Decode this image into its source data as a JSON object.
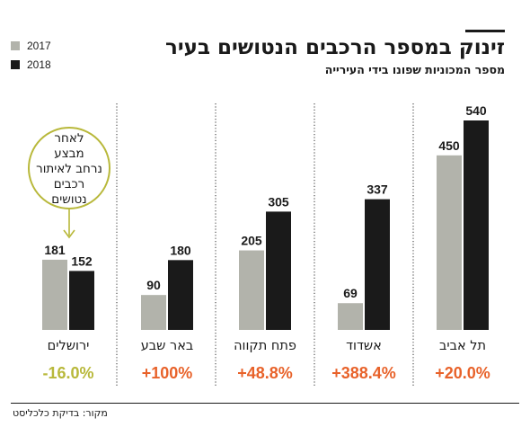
{
  "title": "זינוק במספר הרכבים הנטושים בעיר",
  "subtitle": "מספר המכוניות שפונו בידי העירייה",
  "source": "מקור: בדיקת כלכליסט",
  "legend": [
    {
      "label": "2017",
      "color": "#b2b3ab"
    },
    {
      "label": "2018",
      "color": "#1a1a1a"
    }
  ],
  "colors": {
    "positive": "#e8622a",
    "negative": "#b8b83a",
    "annotation": "#b8b83a"
  },
  "annotation_lines": [
    "לאחר",
    "מבצע",
    "נרחב לאיתור",
    "רכבים",
    "נטושים"
  ],
  "chart_data": {
    "type": "bar",
    "title": "זינוק במספר הרכבים הנטושים בעיר",
    "subtitle": "מספר המכוניות שפונו בידי העירייה",
    "categories": [
      "ירושלים",
      "באר שבע",
      "פתח תקווה",
      "אשדוד",
      "תל אביב"
    ],
    "series": [
      {
        "name": "2017",
        "values": [
          181,
          90,
          205,
          69,
          450
        ]
      },
      {
        "name": "2018",
        "values": [
          152,
          180,
          305,
          337,
          540
        ]
      }
    ],
    "changes": [
      "-16.0%",
      "+100%",
      "+48.8%",
      "+388.4%",
      "+20.0%"
    ],
    "ylim": [
      0,
      540
    ],
    "grid": false,
    "legend_position": "top-left"
  }
}
